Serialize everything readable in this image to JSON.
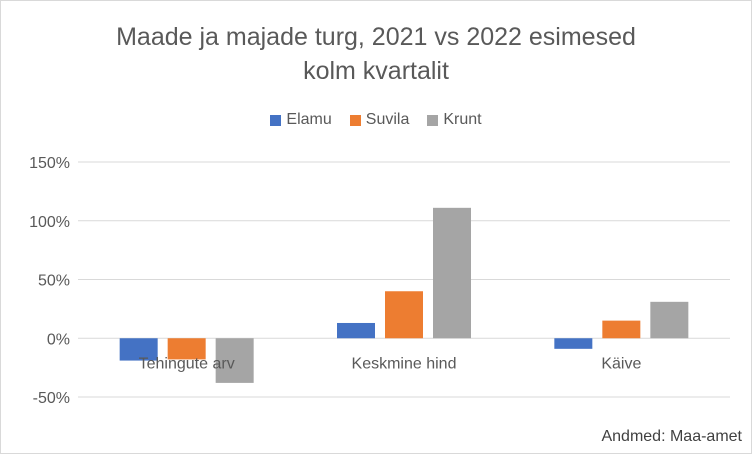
{
  "chart_data": {
    "type": "bar",
    "title_lines": [
      "Maade ja majade turg, 2021 vs 2022 esimesed",
      "kolm kvartalit"
    ],
    "categories": [
      "Tehingute arv",
      "Keskmine hind",
      "Käive"
    ],
    "series": [
      {
        "name": "Elamu",
        "color": "#4472c4",
        "values": [
          -0.19,
          0.13,
          -0.09
        ]
      },
      {
        "name": "Suvila",
        "color": "#ed7d31",
        "values": [
          -0.18,
          0.4,
          0.15
        ]
      },
      {
        "name": "Krunt",
        "color": "#a5a5a5",
        "values": [
          -0.38,
          1.11,
          0.31
        ]
      }
    ],
    "ylim": [
      -0.5,
      1.5
    ],
    "yticks": [
      1.5,
      1.0,
      0.5,
      0,
      -0.5
    ],
    "ytick_labels": [
      "150%",
      "100%",
      "50%",
      "0%",
      "-50%"
    ],
    "xlabel": "",
    "ylabel": "",
    "grid": true,
    "legend_position": "top"
  },
  "source_note": "Andmed: Maa-amet"
}
